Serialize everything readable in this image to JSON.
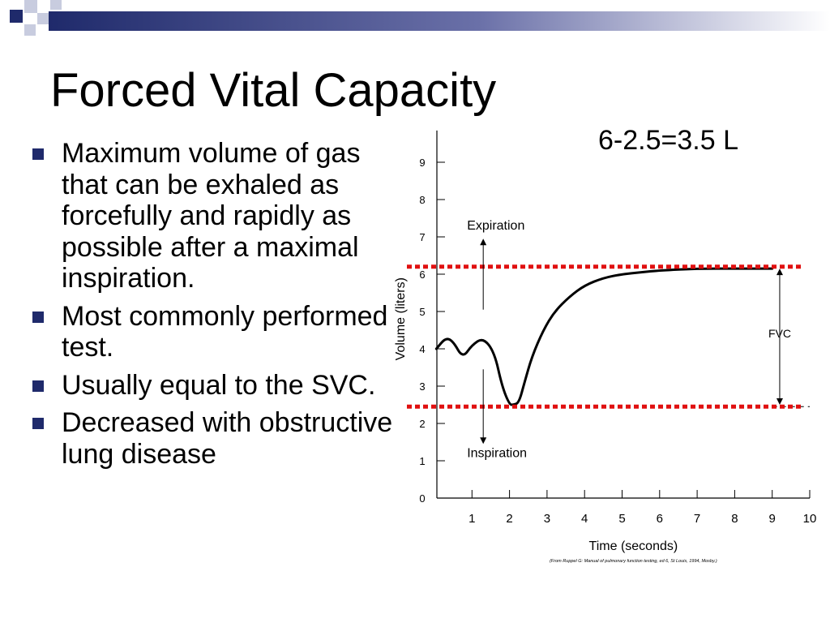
{
  "slide": {
    "title": "Forced Vital Capacity",
    "bullets": [
      "Maximum volume of gas that can be exhaled as forcefully and rapidly as possible after a maximal inspiration.",
      "Most commonly performed test.",
      "Usually equal to the SVC.",
      "Decreased with obstructive lung disease"
    ],
    "formula": "6-2.5=3.5 L"
  },
  "colors": {
    "band_dark": "#1f2a6b",
    "reference_lines": "#e01010",
    "bullet_mark": "#1f2a6b"
  },
  "chart_data": {
    "type": "line",
    "xlabel": "Time (seconds)",
    "ylabel": "Volume (liters)",
    "xlim": [
      0,
      10
    ],
    "ylim": [
      0,
      10
    ],
    "x_ticks": [
      1,
      2,
      3,
      4,
      5,
      6,
      7,
      8,
      9,
      10
    ],
    "y_ticks": [
      0,
      1,
      2,
      3,
      4,
      5,
      6,
      7,
      8,
      9
    ],
    "series": [
      {
        "x": [
          0.05,
          0.3,
          0.5,
          0.75,
          1.0,
          1.3,
          1.6,
          1.8,
          2.0,
          2.1,
          2.25,
          2.4,
          2.6,
          2.9,
          3.2,
          3.6,
          4.0,
          4.5,
          5.0,
          5.5,
          6.0,
          7.0,
          8.0,
          9.0
        ],
        "y": [
          4.0,
          4.3,
          4.2,
          3.75,
          4.1,
          4.3,
          3.9,
          3.0,
          2.5,
          2.5,
          2.55,
          3.1,
          3.8,
          4.5,
          5.0,
          5.4,
          5.7,
          5.9,
          6.0,
          6.05,
          6.1,
          6.15,
          6.15,
          6.15
        ]
      }
    ],
    "reference_lines": [
      6.2,
      2.45
    ],
    "annotations": [
      {
        "text": "Expiration",
        "x": 1.3,
        "y": 7.2
      },
      {
        "text": "Inspiration",
        "x": 1.3,
        "y": 1.1
      },
      {
        "text": "FVC",
        "x": 9.2,
        "y": 4.3
      }
    ],
    "source_note": "(From Ruppel G: Manual of pulmonary function testing, ed 6, St Louis, 1994, Mosby.)",
    "grid": false
  }
}
